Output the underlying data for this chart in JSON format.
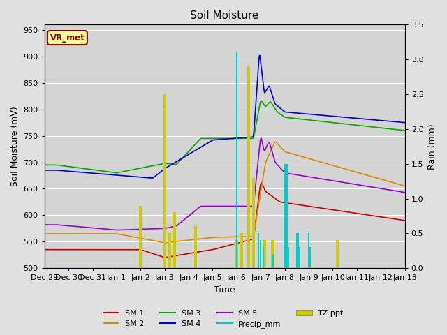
{
  "title": "Soil Moisture",
  "ylabel_left": "Soil Moisture (mV)",
  "ylabel_right": "Rain (mm)",
  "xlabel": "Time",
  "ylim_left": [
    500,
    960
  ],
  "ylim_right": [
    0.0,
    3.5
  ],
  "yticks_left": [
    500,
    550,
    600,
    650,
    700,
    750,
    800,
    850,
    900,
    950
  ],
  "yticks_right": [
    0.0,
    0.5,
    1.0,
    1.5,
    2.0,
    2.5,
    3.0,
    3.5
  ],
  "xtick_labels": [
    "Dec 29",
    "Dec 30",
    "Dec 31",
    "Jan 1",
    "Jan 2",
    "Jan 3",
    "Jan 4",
    "Jan 5",
    "Jan 6",
    "Jan 7",
    "Jan 8",
    "Jan 9",
    "Jan 10",
    "Jan 11",
    "Jan 12",
    "Jan 13"
  ],
  "bg_color": "#e0e0e0",
  "plot_bg_color": "#d4d4d4",
  "grid_color": "#ffffff",
  "annotation_text": "VR_met",
  "annotation_color": "#8b0000",
  "annotation_bg": "#ffff99",
  "sm1_color": "#cc0000",
  "sm2_color": "#dd8800",
  "sm3_color": "#00aa00",
  "sm4_color": "#0000cc",
  "sm5_color": "#9900cc",
  "precip_color": "#00cccc",
  "tzppt_color": "#cccc00",
  "legend_entries": [
    "SM 1",
    "SM 2",
    "SM 3",
    "SM 4",
    "SM 5",
    "Precip_mm",
    "TZ ppt"
  ]
}
